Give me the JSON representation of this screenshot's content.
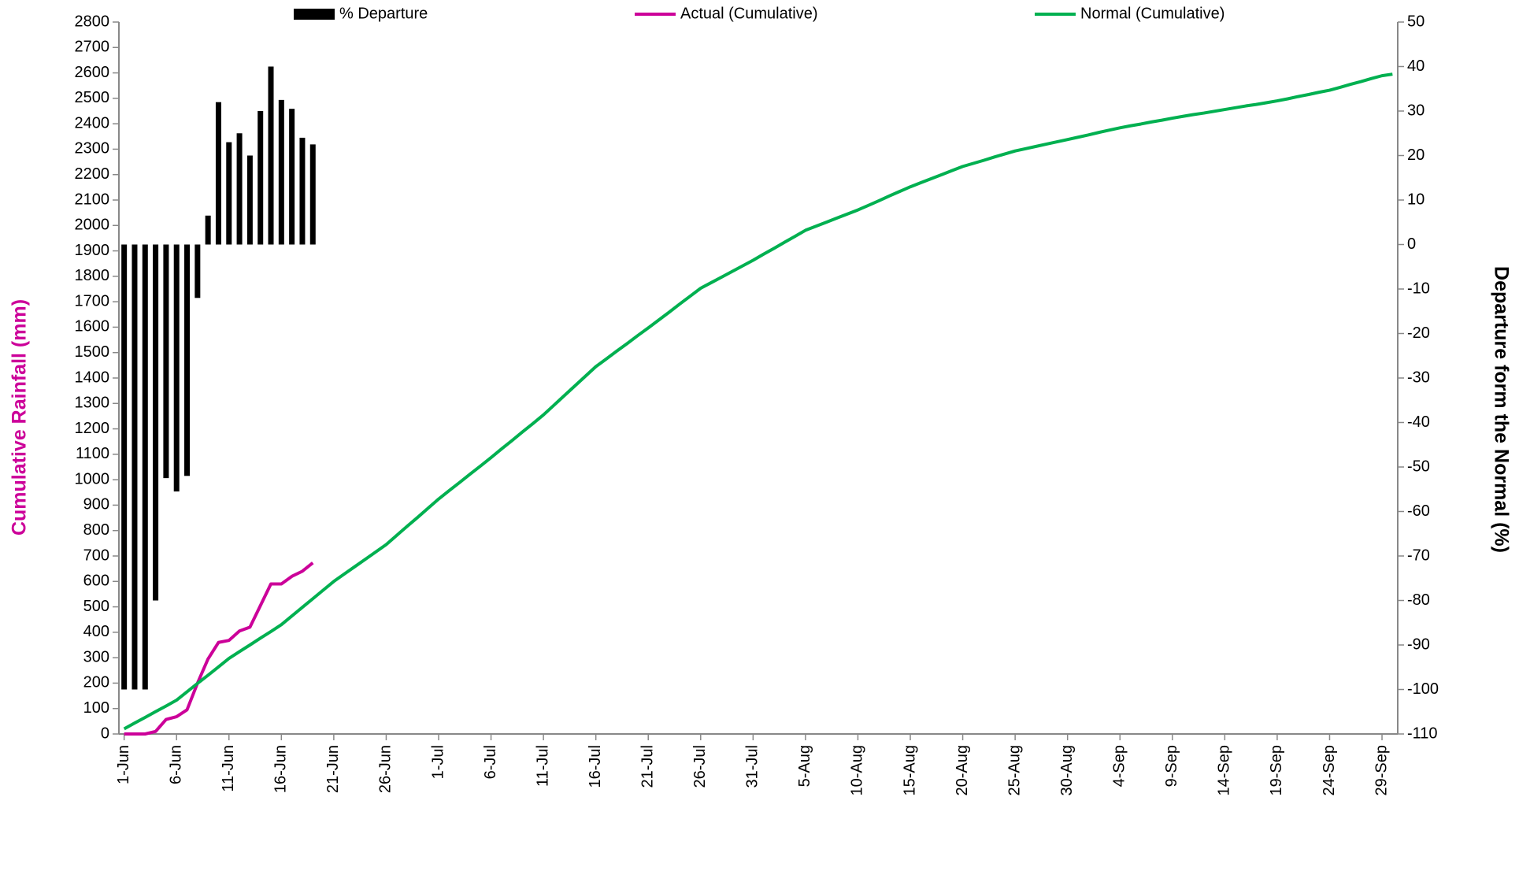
{
  "chart_data": {
    "type": "combo",
    "ylabel": "Cumulative Rainfall (mm)",
    "ylabel_color": "#cc0099",
    "y2label": "Departure form the Normal (%)",
    "legend": "top",
    "categories": [
      "1-Jun",
      null,
      null,
      null,
      null,
      "6-Jun",
      null,
      null,
      null,
      null,
      "11-Jun",
      null,
      null,
      null,
      null,
      "16-Jun",
      null,
      null,
      null,
      null,
      "21-Jun",
      null,
      null,
      null,
      null,
      "26-Jun",
      null,
      null,
      null,
      null,
      "1-Jul",
      null,
      null,
      null,
      null,
      "6-Jul",
      null,
      null,
      null,
      null,
      "11-Jul",
      null,
      null,
      null,
      null,
      "16-Jul",
      null,
      null,
      null,
      null,
      "21-Jul",
      null,
      null,
      null,
      null,
      "26-Jul",
      null,
      null,
      null,
      null,
      "31-Jul",
      null,
      null,
      null,
      null,
      "5-Aug",
      null,
      null,
      null,
      null,
      "10-Aug",
      null,
      null,
      null,
      null,
      "15-Aug",
      null,
      null,
      null,
      null,
      "20-Aug",
      null,
      null,
      null,
      null,
      "25-Aug",
      null,
      null,
      null,
      null,
      "30-Aug",
      null,
      null,
      null,
      null,
      "4-Sep",
      null,
      null,
      null,
      null,
      "9-Sep",
      null,
      null,
      null,
      null,
      "14-Sep",
      null,
      null,
      null,
      null,
      "19-Sep",
      null,
      null,
      null,
      null,
      "24-Sep",
      null,
      null,
      null,
      null,
      "29-Sep",
      null
    ],
    "series": [
      {
        "name": "% Departure",
        "type": "bar",
        "axis": "y2",
        "color": "#000000",
        "values": [
          -100,
          -100,
          -100,
          -80,
          -52.5,
          -55.5,
          -52,
          -12,
          6.5,
          32,
          23,
          25,
          20,
          30,
          40,
          32.5,
          30.5,
          24,
          22.5,
          null,
          null,
          null,
          null,
          null,
          null,
          null,
          null,
          null,
          null,
          null,
          null,
          null,
          null,
          null,
          null,
          null,
          null,
          null,
          null,
          null,
          null,
          null,
          null,
          null,
          null,
          null,
          null,
          null,
          null,
          null,
          null,
          null,
          null,
          null,
          null,
          null,
          null,
          null,
          null,
          null,
          null,
          null,
          null,
          null,
          null,
          null,
          null,
          null,
          null,
          null,
          null,
          null,
          null,
          null,
          null,
          null,
          null,
          null,
          null,
          null,
          null,
          null,
          null,
          null,
          null,
          null,
          null,
          null,
          null,
          null,
          null,
          null,
          null,
          null,
          null,
          null,
          null,
          null,
          null,
          null,
          null,
          null,
          null,
          null,
          null,
          null,
          null,
          null,
          null,
          null,
          null,
          null,
          null,
          null,
          null,
          null,
          null,
          null,
          null,
          null,
          null,
          null
        ]
      },
      {
        "name": "Actual (Cumulative)",
        "type": "line",
        "color": "#cc0099",
        "values": [
          0,
          0,
          0,
          10,
          57,
          68,
          95,
          200,
          295,
          360,
          368,
          405,
          420,
          505,
          590,
          590,
          620,
          640,
          673,
          null,
          null,
          null,
          null,
          null,
          null,
          null,
          null,
          null,
          null,
          null,
          null,
          null,
          null,
          null,
          null,
          null,
          null,
          null,
          null,
          null,
          null,
          null,
          null,
          null,
          null,
          null,
          null,
          null,
          null,
          null,
          null,
          null,
          null,
          null,
          null,
          null,
          null,
          null,
          null,
          null,
          null,
          null,
          null,
          null,
          null,
          null,
          null,
          null,
          null,
          null,
          null,
          null,
          null,
          null,
          null,
          null,
          null,
          null,
          null,
          null,
          null,
          null,
          null,
          null,
          null,
          null,
          null,
          null,
          null,
          null,
          null,
          null,
          null,
          null,
          null,
          null,
          null,
          null,
          null,
          null,
          null,
          null,
          null,
          null,
          null,
          null,
          null,
          null,
          null,
          null,
          null,
          null,
          null,
          null,
          null,
          null,
          null,
          null,
          null,
          null,
          null,
          null
        ]
      },
      {
        "name": "Normal (Cumulative)",
        "type": "line",
        "color": "#00b050",
        "values": [
          20,
          43,
          65,
          88,
          110,
          133,
          166,
          199,
          231,
          264,
          297,
          324,
          350,
          377,
          403,
          430,
          464,
          498,
          532,
          566,
          600,
          629,
          658,
          687,
          716,
          745,
          781,
          817,
          852,
          888,
          924,
          957,
          989,
          1022,
          1054,
          1087,
          1121,
          1154,
          1188,
          1221,
          1255,
          1293,
          1331,
          1369,
          1407,
          1445,
          1475,
          1506,
          1536,
          1567,
          1597,
          1628,
          1659,
          1691,
          1722,
          1753,
          1775,
          1797,
          1819,
          1841,
          1863,
          1887,
          1910,
          1934,
          1957,
          1981,
          1997,
          2013,
          2029,
          2045,
          2061,
          2079,
          2097,
          2116,
          2134,
          2152,
          2168,
          2184,
          2200,
          2216,
          2232,
          2244,
          2256,
          2269,
          2281,
          2293,
          2302,
          2311,
          2320,
          2329,
          2338,
          2347,
          2356,
          2366,
          2375,
          2384,
          2392,
          2399,
          2407,
          2414,
          2422,
          2429,
          2436,
          2442,
          2449,
          2456,
          2463,
          2470,
          2476,
          2483,
          2490,
          2498,
          2507,
          2515,
          2524,
          2532,
          2543,
          2555,
          2566,
          2578,
          2589,
          2595
        ]
      }
    ],
    "ylim": [
      0,
      2800
    ],
    "yticks": [
      0,
      100,
      200,
      300,
      400,
      500,
      600,
      700,
      800,
      900,
      1000,
      1100,
      1200,
      1300,
      1400,
      1500,
      1600,
      1700,
      1800,
      1900,
      2000,
      2100,
      2200,
      2300,
      2400,
      2500,
      2600,
      2700,
      2800
    ],
    "y2lim": [
      -110,
      50
    ],
    "y2ticks": [
      -110,
      -100,
      -90,
      -80,
      -70,
      -60,
      -50,
      -40,
      -30,
      -20,
      -10,
      0,
      10,
      20,
      30,
      40,
      50
    ]
  }
}
